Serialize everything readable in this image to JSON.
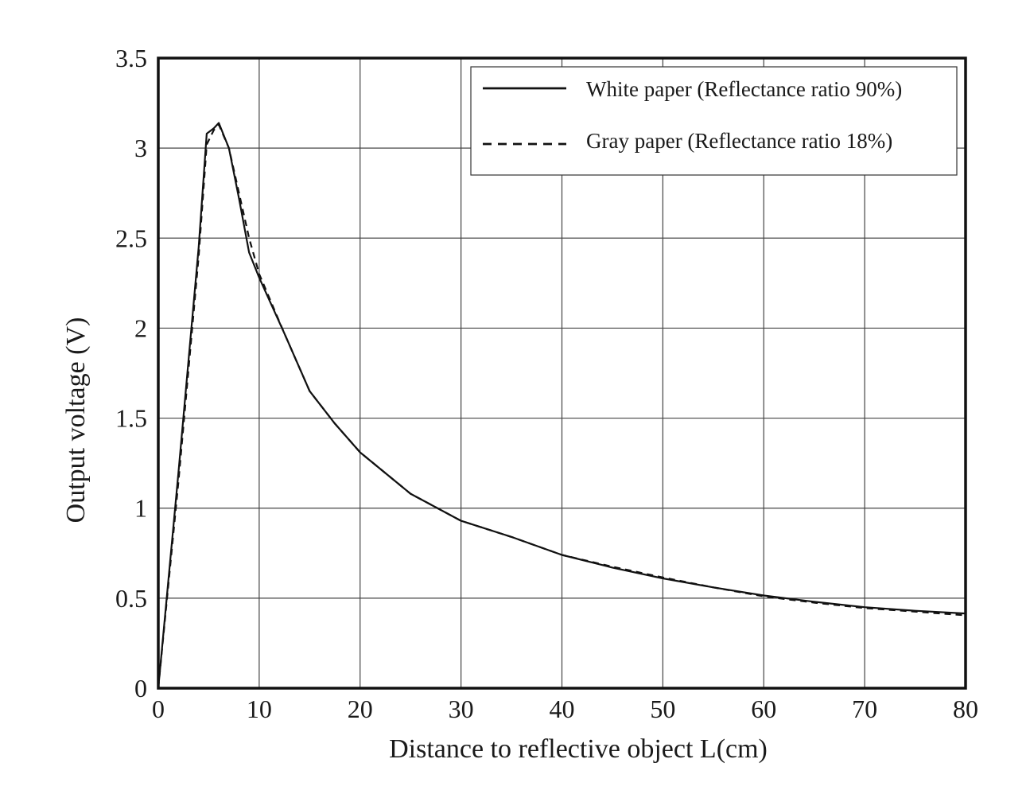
{
  "chart_data": {
    "type": "line",
    "title": "",
    "xlabel": "Distance to reflective object L(cm)",
    "ylabel": "Output voltage (V)",
    "xlim": [
      0,
      80
    ],
    "ylim": [
      0,
      3.5
    ],
    "x_ticks": [
      0,
      10,
      20,
      30,
      40,
      50,
      60,
      70,
      80
    ],
    "y_ticks": [
      0,
      0.5,
      1,
      1.5,
      2,
      2.5,
      3,
      3.5
    ],
    "x_tick_labels": [
      "0",
      "10",
      "20",
      "30",
      "40",
      "50",
      "60",
      "70",
      "80"
    ],
    "y_tick_labels": [
      "0",
      "0.5",
      "1",
      "1.5",
      "2",
      "2.5",
      "3",
      "3.5"
    ],
    "grid": true,
    "legend_position": "top-right",
    "series": [
      {
        "name": "White paper (Reflectance ratio 90%)",
        "style": "solid",
        "color": "#111111",
        "points": [
          [
            0,
            0
          ],
          [
            2,
            1.2
          ],
          [
            4,
            2.45
          ],
          [
            4.8,
            3.08
          ],
          [
            5.5,
            3.11
          ],
          [
            6,
            3.14
          ],
          [
            7,
            3.0
          ],
          [
            8,
            2.72
          ],
          [
            9,
            2.42
          ],
          [
            10,
            2.28
          ],
          [
            12.5,
            1.97
          ],
          [
            15,
            1.65
          ],
          [
            17.5,
            1.47
          ],
          [
            20,
            1.31
          ],
          [
            25,
            1.08
          ],
          [
            30,
            0.93
          ],
          [
            35,
            0.84
          ],
          [
            40,
            0.74
          ],
          [
            45,
            0.67
          ],
          [
            50,
            0.61
          ],
          [
            55,
            0.56
          ],
          [
            60,
            0.515
          ],
          [
            65,
            0.48
          ],
          [
            70,
            0.45
          ],
          [
            75,
            0.43
          ],
          [
            80,
            0.415
          ]
        ]
      },
      {
        "name": "Gray paper (Reflectance ratio 18%)",
        "style": "dashed",
        "color": "#111111",
        "points": [
          [
            0,
            0
          ],
          [
            2,
            1.15
          ],
          [
            4,
            2.4
          ],
          [
            4.8,
            3.02
          ],
          [
            5.5,
            3.1
          ],
          [
            6,
            3.13
          ],
          [
            7,
            3.0
          ],
          [
            8,
            2.75
          ],
          [
            9,
            2.5
          ],
          [
            10,
            2.3
          ],
          [
            12.5,
            1.97
          ],
          [
            15,
            1.65
          ],
          [
            17.5,
            1.47
          ],
          [
            20,
            1.31
          ],
          [
            25,
            1.08
          ],
          [
            30,
            0.93
          ],
          [
            35,
            0.84
          ],
          [
            40,
            0.74
          ],
          [
            45,
            0.675
          ],
          [
            50,
            0.615
          ],
          [
            55,
            0.56
          ],
          [
            60,
            0.51
          ],
          [
            65,
            0.475
          ],
          [
            70,
            0.445
          ],
          [
            75,
            0.425
          ],
          [
            80,
            0.405
          ]
        ]
      }
    ]
  }
}
